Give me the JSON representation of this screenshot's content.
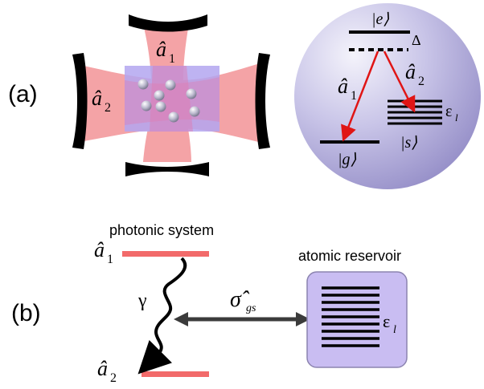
{
  "panel_a": {
    "label": "(a)",
    "cavity": {
      "mode1": "â",
      "mode1_sub": "1",
      "mode2": "â",
      "mode2_sub": "2"
    },
    "level_scheme": {
      "excited": "|e⟩",
      "ground": "|g⟩",
      "storage": "|s⟩",
      "detuning": "Δ",
      "transition1": "â",
      "transition1_sub": "1",
      "transition2": "â",
      "transition2_sub": "2",
      "band_symbol": "ε",
      "band_sub": "l"
    },
    "colors": {
      "beam": "#f4a3a6",
      "atom_cloud": "#b3a6f0",
      "sphere": "#a7a1d6",
      "arrow": "#e01515"
    }
  },
  "panel_b": {
    "label": "(b)",
    "photonic_system_label": "photonic system",
    "reservoir_label": "atomic reservoir",
    "mode1": "â",
    "mode1_sub": "1",
    "mode2": "â",
    "mode2_sub": "2",
    "decay_rate": "γ",
    "coupling": "σ̂",
    "coupling_sub": "gs",
    "band_symbol": "ε",
    "band_sub": "l",
    "colors": {
      "level_line": "#f26a6a",
      "reservoir_box": "#c9bdf2",
      "coupling_arrow": "#3b3b3b"
    }
  }
}
